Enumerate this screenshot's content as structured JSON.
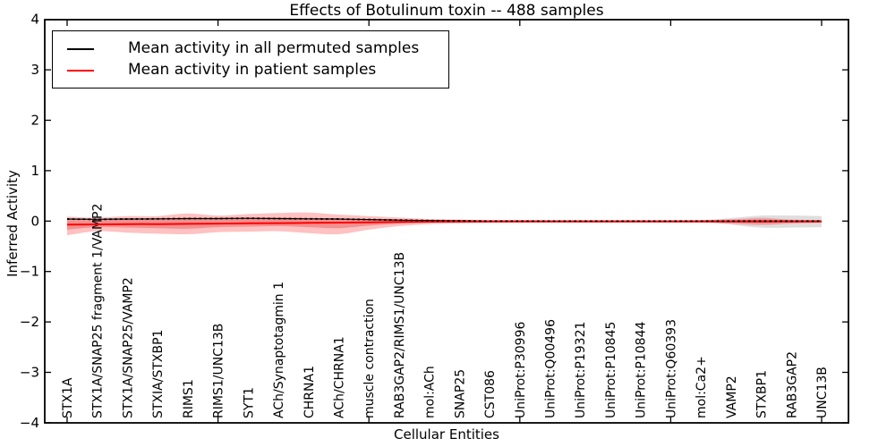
{
  "title": "Effects of Botulinum toxin -- 488 samples",
  "legend": {
    "items": [
      {
        "label": "Mean activity in all permuted samples",
        "color": "#000000"
      },
      {
        "label": "Mean activity in patient samples",
        "color": "#ff0000"
      }
    ]
  },
  "chart_data": {
    "type": "line",
    "title": "Effects of Botulinum toxin -- 488 samples",
    "xlabel": "Cellular Entities",
    "ylabel": "Inferred Activity",
    "ylim": [
      -4,
      4
    ],
    "yticks": [
      4,
      3,
      2,
      1,
      0,
      -1,
      -2,
      -3,
      -4
    ],
    "x_major_tick_indices": [
      0,
      5,
      10,
      15,
      20,
      25
    ],
    "grid": false,
    "legend_position": "upper left",
    "categories": [
      "STX1A",
      "STX1A/SNAP25 fragment 1/VAMP2",
      "STX1A/SNAP25/VAMP2",
      "STXIA/STXBP1",
      "RIMS1",
      "RIMS1/UNC13B",
      "SYT1",
      "ACh/Synaptotagmin 1",
      "CHRNA1",
      "ACh/CHRNA1",
      "muscle contraction",
      "RAB3GAP2/RIMS1/UNC13B",
      "mol:ACh",
      "SNAP25",
      "CST086",
      "UniProt:P30996",
      "UniProt:Q00496",
      "UniProt:P19321",
      "UniProt:P10845",
      "UniProt:P10844",
      "UniProt:Q60393",
      "mol:Ca2+",
      "VAMP2",
      "STXBP1",
      "RAB3GAP2",
      "UNC13B"
    ],
    "series": [
      {
        "name": "Mean activity in all permuted samples",
        "color": "#000000",
        "style": "solid-with-dotted-overlay",
        "values": [
          0.04,
          0.035,
          0.04,
          0.045,
          0.05,
          0.05,
          0.055,
          0.05,
          0.045,
          0.04,
          0.03,
          0.02,
          0.01,
          0.005,
          0,
          0,
          0,
          0,
          0,
          0,
          0,
          0,
          0,
          0,
          0,
          0
        ]
      },
      {
        "name": "Mean activity in patient samples",
        "color": "#ff0000",
        "style": "solid",
        "values": [
          -0.07,
          -0.065,
          -0.06,
          -0.06,
          -0.055,
          -0.05,
          -0.045,
          -0.04,
          -0.035,
          -0.03,
          -0.025,
          -0.018,
          -0.012,
          -0.01,
          -0.008,
          -0.008,
          -0.008,
          -0.008,
          -0.008,
          -0.008,
          -0.008,
          -0.008,
          -0.008,
          -0.008,
          -0.008,
          -0.008
        ]
      }
    ],
    "bands": [
      {
        "name": "permuted-samples-band",
        "color": "#000000",
        "opacity": 0.13,
        "hi": [
          0,
          0,
          0,
          0,
          0,
          0,
          0,
          0,
          0,
          0,
          0,
          0,
          0,
          0,
          0,
          0,
          0,
          0,
          0,
          0,
          0,
          0.01,
          0.06,
          0.11,
          0.11,
          0.1
        ],
        "lo": [
          0,
          0,
          0,
          0,
          0,
          0,
          0,
          0,
          0,
          0,
          0,
          0,
          0,
          0,
          0,
          0,
          0,
          0,
          0,
          0,
          0,
          -0.012,
          -0.07,
          -0.13,
          -0.13,
          -0.12
        ]
      },
      {
        "name": "patient-samples-band-outer",
        "color": "#ff2020",
        "opacity": 0.28,
        "hi": [
          0.09,
          0.07,
          0.1,
          0.1,
          0.15,
          0.11,
          0.14,
          0.16,
          0.17,
          0.13,
          0.1,
          0.07,
          0.04,
          0.03,
          0.02,
          0.018,
          0.015,
          0.015,
          0.015,
          0.015,
          0.015,
          0.02,
          0.035,
          0.065,
          0.03,
          0.02
        ],
        "lo": [
          -0.28,
          -0.2,
          -0.23,
          -0.25,
          -0.26,
          -0.22,
          -0.21,
          -0.2,
          -0.24,
          -0.26,
          -0.17,
          -0.1,
          -0.06,
          -0.045,
          -0.035,
          -0.03,
          -0.028,
          -0.028,
          -0.028,
          -0.028,
          -0.028,
          -0.03,
          -0.05,
          -0.08,
          -0.05,
          -0.035
        ]
      },
      {
        "name": "patient-samples-band-inner",
        "color": "#d82020",
        "opacity": 0.3,
        "hi": [
          0.02,
          0.015,
          0.03,
          0.035,
          0.06,
          0.04,
          0.055,
          0.065,
          0.06,
          0.05,
          0.04,
          0.025,
          0.015,
          0.01,
          0.008,
          0.008,
          0.008,
          0.008,
          0.008,
          0.008,
          0.008,
          0.008,
          0.015,
          0.03,
          0.015,
          0.01
        ],
        "lo": [
          -0.17,
          -0.12,
          -0.13,
          -0.14,
          -0.15,
          -0.12,
          -0.11,
          -0.1,
          -0.12,
          -0.14,
          -0.09,
          -0.05,
          -0.03,
          -0.02,
          -0.015,
          -0.015,
          -0.015,
          -0.015,
          -0.015,
          -0.015,
          -0.015,
          -0.015,
          -0.025,
          -0.04,
          -0.025,
          -0.018
        ]
      }
    ]
  }
}
